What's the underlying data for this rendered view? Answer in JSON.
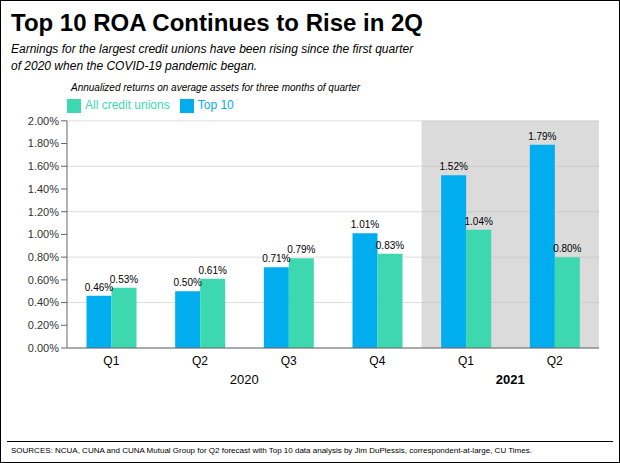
{
  "chart_data": {
    "type": "bar",
    "title": "Top 10 ROA Continues to Rise in 2Q",
    "subtitle": "Earnings for the largest credit unions have been rising since the first quarter\nof 2020 when the COVID-19 pandemic began.",
    "annotations": [
      "Annualized returns on average assets for three months of quarter",
      "SOURCES: NCUA, CUNA and CUNA Mutual Group for Q2 forecast with Top 10 data analysis by Jim DuPlessis, correspondent-at-large, CU Times."
    ],
    "categories": [
      "Q1",
      "Q2",
      "Q3",
      "Q4",
      "Q1",
      "Q2"
    ],
    "groups": [
      {
        "label": "2020",
        "from": 0,
        "to": 3
      },
      {
        "label": "2021",
        "from": 4,
        "to": 5,
        "color": "#BEBEBE"
      }
    ],
    "series": [
      {
        "name": "Top 10",
        "color": "#00AEEF",
        "values": [
          0.46,
          0.5,
          0.71,
          1.01,
          1.52,
          1.79
        ],
        "value_labels": [
          "0.46%",
          "0.50%",
          "0.71%",
          "1.01%",
          "1.52%",
          "1.79%"
        ]
      },
      {
        "name": "All credit unions",
        "color": "#3ED8B0",
        "values": [
          0.53,
          0.61,
          0.79,
          0.83,
          1.04,
          0.8
        ],
        "value_labels": [
          "0.53%",
          "0.61%",
          "0.79%",
          "0.83%",
          "1.04%",
          "0.80%"
        ]
      }
    ],
    "ylim": [
      0,
      2.0
    ],
    "yticks": [
      {
        "value": 0.0,
        "label": "0.00%"
      },
      {
        "value": 0.2,
        "label": "0.20%"
      },
      {
        "value": 0.4,
        "label": "0.40%"
      },
      {
        "value": 0.6,
        "label": "0.60%"
      },
      {
        "value": 0.8,
        "label": "0.80%"
      },
      {
        "value": 1.0,
        "label": "1.00%"
      },
      {
        "value": 1.2,
        "label": "1.20%"
      },
      {
        "value": 1.4,
        "label": "1.40%"
      },
      {
        "value": 1.6,
        "label": "1.60%"
      },
      {
        "value": 1.8,
        "label": "1.80%"
      },
      {
        "value": 2.0,
        "label": "2.00%"
      }
    ],
    "grid": true,
    "legend": "upper left",
    "data_labels": true
  }
}
